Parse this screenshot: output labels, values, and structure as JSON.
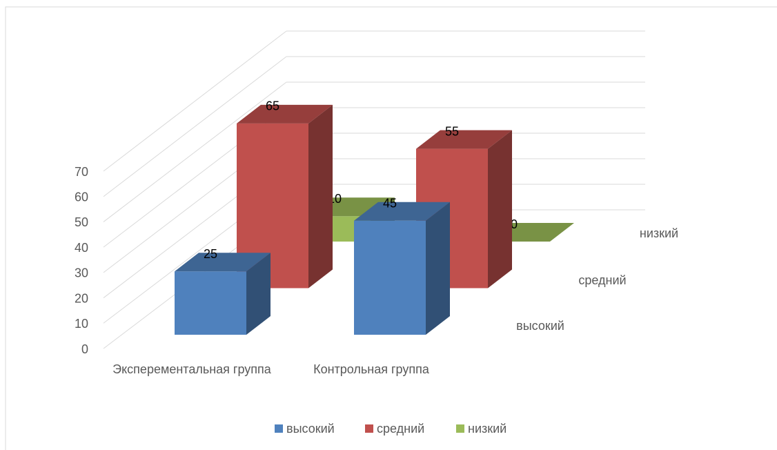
{
  "chart_data": {
    "type": "bar3d",
    "categories": [
      "Эксперементальная группа",
      "Контрольная группа"
    ],
    "series": [
      {
        "name": "высокий",
        "color": "#4f81bd",
        "values": [
          25,
          45
        ]
      },
      {
        "name": "средний",
        "color": "#c0504d",
        "values": [
          65,
          55
        ]
      },
      {
        "name": "низкий",
        "color": "#9bbb59",
        "values": [
          10,
          0
        ]
      }
    ],
    "ylim": [
      0,
      70
    ],
    "yticks": [
      0,
      10,
      20,
      30,
      40,
      50,
      60,
      70
    ],
    "grid": true,
    "legend": "bottom"
  }
}
